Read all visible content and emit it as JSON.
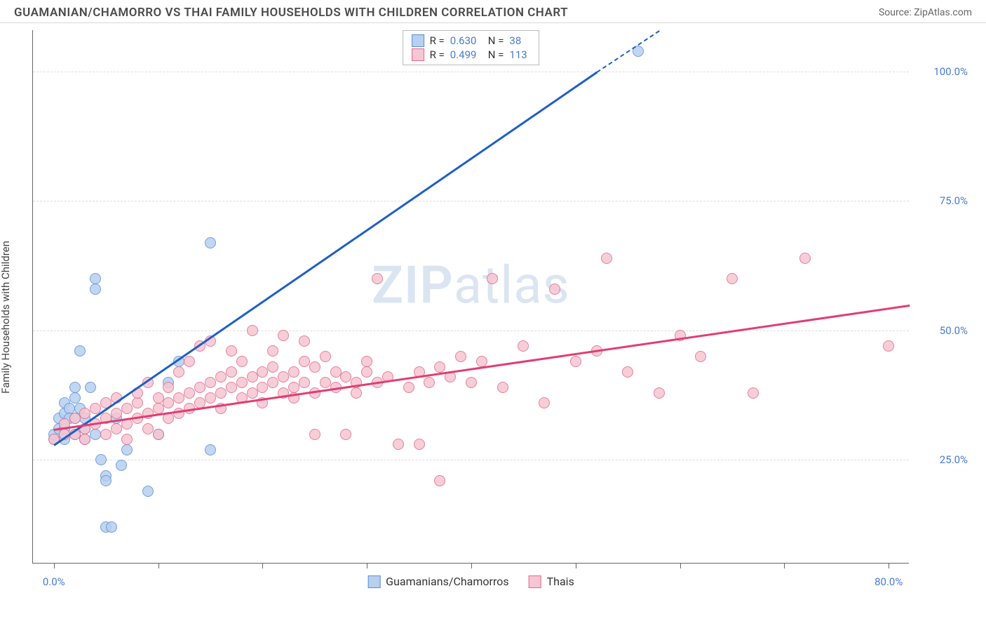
{
  "header": {
    "title": "GUAMANIAN/CHAMORRO VS THAI FAMILY HOUSEHOLDS WITH CHILDREN CORRELATION CHART",
    "source": "Source: ZipAtlas.com"
  },
  "chart": {
    "type": "scatter",
    "ylabel": "Family Households with Children",
    "watermark_bold": "ZIP",
    "watermark_rest": "atlas",
    "background_color": "#ffffff",
    "grid_color": "#dddddd",
    "axis_color": "#666666",
    "tick_label_color": "#4a7bd0",
    "x_range": [
      -2,
      82
    ],
    "y_range": [
      5,
      108
    ],
    "x_axis_labels": [
      {
        "value": 0,
        "text": "0.0%"
      },
      {
        "value": 80,
        "text": "80.0%"
      }
    ],
    "x_minor_ticks": [
      0,
      10,
      20,
      30,
      40,
      50,
      60,
      70,
      80
    ],
    "y_gridlines": [
      {
        "value": 25,
        "text": "25.0%"
      },
      {
        "value": 50,
        "text": "50.0%"
      },
      {
        "value": 75,
        "text": "75.0%"
      },
      {
        "value": 100,
        "text": "100.0%"
      }
    ],
    "marker_radius": 8,
    "marker_stroke_width": 1.5,
    "trend_line_width": 2.5,
    "series": [
      {
        "id": "guamanian",
        "label": "Guamanians/Chamorros",
        "fill_color": "#b7d0ef",
        "stroke_color": "#5b8fd6",
        "trend_color": "#1f5fc4",
        "R": "0.630",
        "N": "38",
        "trend_solid": {
          "x1": 0,
          "y1": 28,
          "x2": 52,
          "y2": 100
        },
        "trend_dash": {
          "x1": 52,
          "y1": 100,
          "x2": 58,
          "y2": 108
        },
        "points": [
          [
            0,
            29
          ],
          [
            0,
            30
          ],
          [
            0.5,
            31
          ],
          [
            0.5,
            33
          ],
          [
            1,
            29
          ],
          [
            1,
            31
          ],
          [
            1,
            34
          ],
          [
            1,
            36
          ],
          [
            1.5,
            35
          ],
          [
            1.5,
            33
          ],
          [
            2,
            37
          ],
          [
            2,
            39
          ],
          [
            2,
            33
          ],
          [
            2,
            30
          ],
          [
            2.5,
            35
          ],
          [
            2.5,
            46
          ],
          [
            3,
            29
          ],
          [
            3,
            31
          ],
          [
            3,
            33
          ],
          [
            3.5,
            39
          ],
          [
            4,
            58
          ],
          [
            4,
            60
          ],
          [
            4,
            30
          ],
          [
            4.5,
            25
          ],
          [
            5,
            22
          ],
          [
            5,
            21
          ],
          [
            5,
            12
          ],
          [
            5.5,
            12
          ],
          [
            6,
            33
          ],
          [
            6.5,
            24
          ],
          [
            7,
            27
          ],
          [
            9,
            19
          ],
          [
            10,
            30
          ],
          [
            11,
            40
          ],
          [
            12,
            44
          ],
          [
            15,
            67
          ],
          [
            15,
            27
          ],
          [
            56,
            104
          ]
        ]
      },
      {
        "id": "thai",
        "label": "Thais",
        "fill_color": "#f6c6d2",
        "stroke_color": "#e06b8b",
        "trend_color": "#e23d72",
        "R": "0.499",
        "N": "113",
        "trend_solid": {
          "x1": 0,
          "y1": 31,
          "x2": 82,
          "y2": 55
        },
        "trend_dash": null,
        "points": [
          [
            0,
            29
          ],
          [
            1,
            30
          ],
          [
            1,
            32
          ],
          [
            2,
            30
          ],
          [
            2,
            33
          ],
          [
            3,
            29
          ],
          [
            3,
            31
          ],
          [
            3,
            34
          ],
          [
            4,
            32
          ],
          [
            4,
            35
          ],
          [
            5,
            30
          ],
          [
            5,
            33
          ],
          [
            5,
            36
          ],
          [
            6,
            31
          ],
          [
            6,
            34
          ],
          [
            6,
            37
          ],
          [
            7,
            29
          ],
          [
            7,
            32
          ],
          [
            7,
            35
          ],
          [
            8,
            33
          ],
          [
            8,
            36
          ],
          [
            8,
            38
          ],
          [
            9,
            31
          ],
          [
            9,
            34
          ],
          [
            9,
            40
          ],
          [
            10,
            35
          ],
          [
            10,
            37
          ],
          [
            10,
            30
          ],
          [
            11,
            33
          ],
          [
            11,
            36
          ],
          [
            11,
            39
          ],
          [
            12,
            34
          ],
          [
            12,
            37
          ],
          [
            12,
            42
          ],
          [
            13,
            35
          ],
          [
            13,
            38
          ],
          [
            13,
            44
          ],
          [
            14,
            36
          ],
          [
            14,
            39
          ],
          [
            14,
            47
          ],
          [
            15,
            37
          ],
          [
            15,
            40
          ],
          [
            15,
            48
          ],
          [
            16,
            35
          ],
          [
            16,
            38
          ],
          [
            16,
            41
          ],
          [
            17,
            39
          ],
          [
            17,
            42
          ],
          [
            17,
            46
          ],
          [
            18,
            37
          ],
          [
            18,
            40
          ],
          [
            18,
            44
          ],
          [
            19,
            38
          ],
          [
            19,
            41
          ],
          [
            19,
            50
          ],
          [
            20,
            39
          ],
          [
            20,
            42
          ],
          [
            20,
            36
          ],
          [
            21,
            40
          ],
          [
            21,
            43
          ],
          [
            21,
            46
          ],
          [
            22,
            38
          ],
          [
            22,
            41
          ],
          [
            22,
            49
          ],
          [
            23,
            39
          ],
          [
            23,
            42
          ],
          [
            23,
            37
          ],
          [
            24,
            40
          ],
          [
            24,
            44
          ],
          [
            24,
            48
          ],
          [
            25,
            38
          ],
          [
            25,
            43
          ],
          [
            25,
            30
          ],
          [
            26,
            40
          ],
          [
            26,
            45
          ],
          [
            27,
            39
          ],
          [
            27,
            42
          ],
          [
            28,
            41
          ],
          [
            28,
            30
          ],
          [
            29,
            40
          ],
          [
            29,
            38
          ],
          [
            30,
            42
          ],
          [
            30,
            44
          ],
          [
            31,
            40
          ],
          [
            31,
            60
          ],
          [
            32,
            41
          ],
          [
            33,
            28
          ],
          [
            34,
            39
          ],
          [
            35,
            42
          ],
          [
            35,
            28
          ],
          [
            36,
            40
          ],
          [
            37,
            43
          ],
          [
            37,
            21
          ],
          [
            38,
            41
          ],
          [
            39,
            45
          ],
          [
            40,
            40
          ],
          [
            41,
            44
          ],
          [
            42,
            60
          ],
          [
            43,
            39
          ],
          [
            45,
            47
          ],
          [
            47,
            36
          ],
          [
            48,
            58
          ],
          [
            50,
            44
          ],
          [
            52,
            46
          ],
          [
            53,
            64
          ],
          [
            55,
            42
          ],
          [
            58,
            38
          ],
          [
            60,
            49
          ],
          [
            62,
            45
          ],
          [
            65,
            60
          ],
          [
            67,
            38
          ],
          [
            72,
            64
          ],
          [
            80,
            47
          ]
        ]
      }
    ],
    "legend_top_labels": {
      "R": "R =",
      "N": "N ="
    }
  }
}
